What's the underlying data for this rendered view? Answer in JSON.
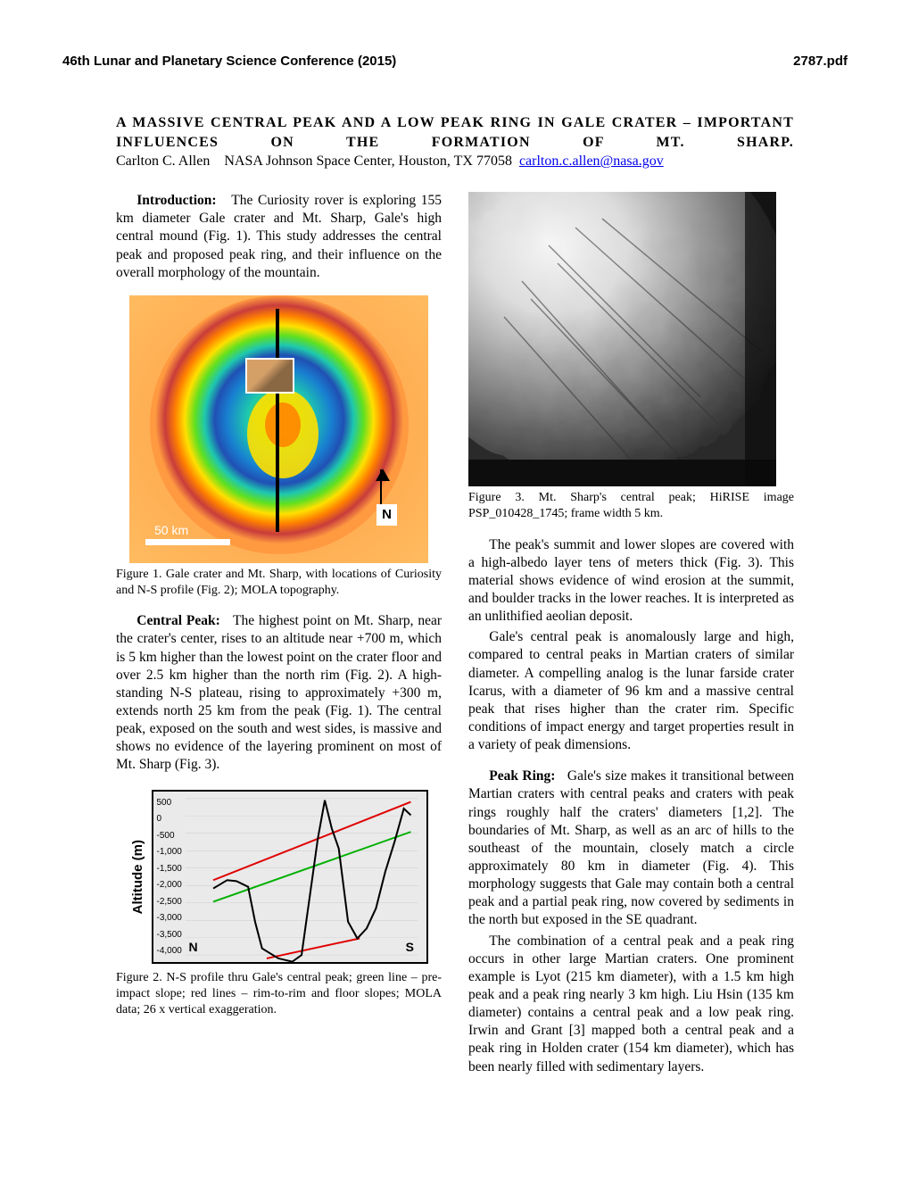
{
  "header": {
    "conference": "46th Lunar and Planetary Science Conference (2015)",
    "docref": "2787.pdf"
  },
  "title": {
    "line": "A  MASSIVE  CENTRAL  PEAK  AND  A  LOW  PEAK  RING  IN  GALE  CRATER  –  IMPORTANT INFLUENCES  ON  THE  FORMATION  OF  MT.  SHARP."
  },
  "author": {
    "name": "Carlton C. Allen",
    "affiliation": "NASA Johnson Space Center, Houston, TX  77058",
    "email": "carlton.c.allen@nasa.gov"
  },
  "intro": {
    "heading": "Introduction:",
    "text": "The Curiosity rover is exploring 155 km diameter Gale crater and Mt. Sharp, Gale's high central mound (Fig. 1). This study addresses the central peak and proposed peak ring, and their influence on the overall morphology of the mountain."
  },
  "fig1": {
    "caption": "Figure 1.   Gale crater and Mt. Sharp, with locations of Curiosity and N-S profile (Fig. 2); MOLA topography.",
    "scalebar_label": "50 km",
    "north_label": "N",
    "colormap": {
      "low": "#2050b4",
      "mid1": "#1ec8ae",
      "mid2": "#60e020",
      "mid3": "#ffe000",
      "high": "#ff8000",
      "rim": "#c83c3c"
    }
  },
  "central_peak": {
    "heading": "Central Peak:",
    "text": "The highest point on Mt. Sharp, near the crater's center, rises to an altitude near +700 m, which is 5 km higher than the lowest point on the crater floor and over 2.5 km higher than the north rim (Fig. 2). A high-standing N-S plateau, rising to approximately +300 m, extends north 25 km from the peak (Fig. 1). The central peak, exposed on the south and west sides, is massive and shows no evidence of the layering prominent on most of Mt. Sharp (Fig. 3)."
  },
  "fig2": {
    "caption": "Figure 2.  N-S profile thru Gale's central peak; green line – pre-impact slope; red lines – rim-to-rim and floor slopes; MOLA data; 26 x vertical exaggeration.",
    "ylabel": "Altitude (m)",
    "n_label": "N",
    "s_label": "S",
    "yticks": [
      "500",
      "0",
      "-500",
      "-1,000",
      "-1,500",
      "-2,000",
      "-2,500",
      "-3,000",
      "-3,500",
      "-4,000"
    ],
    "yrange": [
      -4000,
      700
    ],
    "series": {
      "profile": [
        [
          0.12,
          -2000
        ],
        [
          0.18,
          -1750
        ],
        [
          0.22,
          -1780
        ],
        [
          0.27,
          -1950
        ],
        [
          0.3,
          -3000
        ],
        [
          0.33,
          -3800
        ],
        [
          0.4,
          -4100
        ],
        [
          0.46,
          -4200
        ],
        [
          0.5,
          -4000
        ],
        [
          0.53,
          -2500
        ],
        [
          0.57,
          -500
        ],
        [
          0.6,
          650
        ],
        [
          0.63,
          -200
        ],
        [
          0.66,
          -800
        ],
        [
          0.7,
          -3000
        ],
        [
          0.74,
          -3500
        ],
        [
          0.78,
          -3200
        ],
        [
          0.82,
          -2600
        ],
        [
          0.86,
          -1500
        ],
        [
          0.9,
          -600
        ],
        [
          0.94,
          400
        ],
        [
          0.97,
          200
        ]
      ],
      "green": [
        [
          0.12,
          -2400
        ],
        [
          0.97,
          -300
        ]
      ],
      "red1": [
        [
          0.12,
          -1750
        ],
        [
          0.97,
          600
        ]
      ],
      "red2": [
        [
          0.35,
          -4100
        ],
        [
          0.75,
          -3500
        ]
      ]
    },
    "colors": {
      "profile": "#000000",
      "green": "#00b000",
      "red": "#e00000",
      "bg": "#eaeaea",
      "grid": "#cccccc"
    },
    "line_width": 2
  },
  "fig3": {
    "caption": "Figure 3.   Mt. Sharp's central peak; HiRISE image PSP_010428_1745; frame width 5 km."
  },
  "col2_para1": "The peak's summit and lower slopes are covered with a high-albedo layer tens of meters thick (Fig. 3). This material shows evidence of wind erosion at the summit, and boulder tracks in the lower reaches. It is interpreted as an unlithified aeolian deposit.",
  "col2_para2": "Gale's central peak is anomalously large and high, compared to central peaks in Martian craters of similar diameter. A compelling analog is the lunar farside crater Icarus, with a diameter of 96 km and a massive central peak that rises higher than the crater rim. Specific conditions of impact energy and target properties result in a variety of peak dimensions.",
  "peak_ring": {
    "heading": "Peak Ring:",
    "text1": "Gale's size makes it transitional between Martian craters with central peaks and craters with peak rings roughly half the craters' diameters [1,2]. The boundaries of Mt. Sharp, as well as an arc of hills to the southeast of the mountain, closely match a circle approximately 80 km in diameter (Fig. 4). This morphology suggests that Gale may contain both a central peak and a partial peak ring, now covered by sediments in the north but exposed in the SE quadrant.",
    "text2": "The combination of a central peak and a peak ring occurs in other large Martian craters.  One prominent example is Lyot (215 km diameter), with a 1.5 km high peak and a peak ring nearly 3 km high.  Liu Hsin (135 km diameter) contains a central peak and a low peak ring. Irwin and Grant [3] mapped both a central peak and a peak ring in Holden crater (154 km diameter), which has been nearly filled with sedimentary layers."
  }
}
